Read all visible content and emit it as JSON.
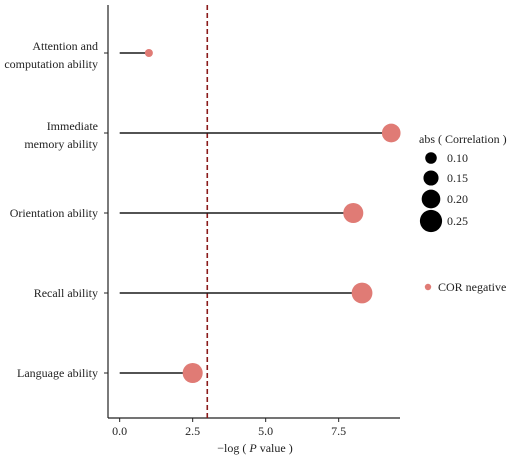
{
  "chart_data": {
    "type": "scatter",
    "variant": "lollipop",
    "categories": [
      "Attention and computation ability",
      "Immediate memory ability",
      "Orientation ability",
      "Recall ability",
      "Language ability"
    ],
    "category_label_lines": [
      [
        "Attention and",
        "computation ability"
      ],
      [
        "Immediate",
        "memory ability"
      ],
      [
        "Orientation ability"
      ],
      [
        "Recall ability"
      ],
      [
        "Language ability"
      ]
    ],
    "x_values": [
      1.0,
      9.3,
      8.0,
      8.3,
      2.5
    ],
    "abs_correlation": [
      0.05,
      0.2,
      0.22,
      0.23,
      0.22
    ],
    "xlabel": "−log ( P value )",
    "xlabel_parts": {
      "prefix": "−log ( ",
      "italic": "P",
      "suffix": " value )"
    },
    "ylabel": "",
    "xlim": [
      -0.4,
      9.6
    ],
    "xticks": [
      0,
      2.5,
      5,
      7.5
    ],
    "xtick_labels": [
      "0.0",
      "2.5",
      "5.0",
      "7.5"
    ],
    "reference_line": {
      "x": 3.0,
      "style": "dashed",
      "color": "#8b1a1a"
    },
    "point_color": "#e07b75",
    "stem_color": "#1a1a1a",
    "grid": false,
    "size_legend": {
      "title": "abs ( Correlation )",
      "values": [
        0.1,
        0.15,
        0.2,
        0.25
      ],
      "labels": [
        "0.10",
        "0.15",
        "0.20",
        "0.25"
      ],
      "symbol_color": "#000000"
    },
    "color_legend": {
      "entries": [
        {
          "label": "COR negative",
          "color": "#e07b75"
        }
      ]
    },
    "legend_position": "right"
  }
}
